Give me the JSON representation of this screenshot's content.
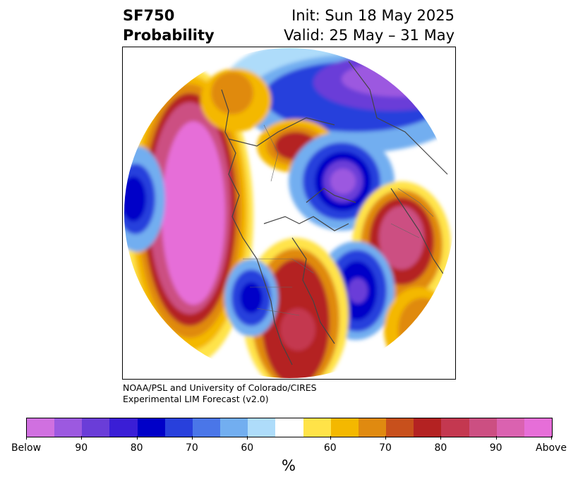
{
  "title": {
    "variable": "SF750",
    "product": "Probability",
    "init": "Init: Sun 18 May 2025",
    "valid": "Valid: 25 May – 31 May"
  },
  "credit": {
    "line1": "NOAA/PSL and University of Colorado/CIRES",
    "line2": "Experimental LIM Forecast (v2.0)"
  },
  "colorbar": {
    "colors": [
      "#d070e0",
      "#9c59e0",
      "#6a3dd8",
      "#3a1ed6",
      "#0000c8",
      "#2840dc",
      "#4a76e8",
      "#72aef0",
      "#aedcfa",
      "#ffffff",
      "#ffe348",
      "#f4b800",
      "#e08a10",
      "#c8501c",
      "#b42222",
      "#c43850",
      "#cc4f82",
      "#da62b0",
      "#e66ed8"
    ],
    "tick_labels": [
      "Below",
      "90",
      "80",
      "70",
      "60",
      "60",
      "70",
      "80",
      "90",
      "Above"
    ],
    "unit": "%"
  }
}
